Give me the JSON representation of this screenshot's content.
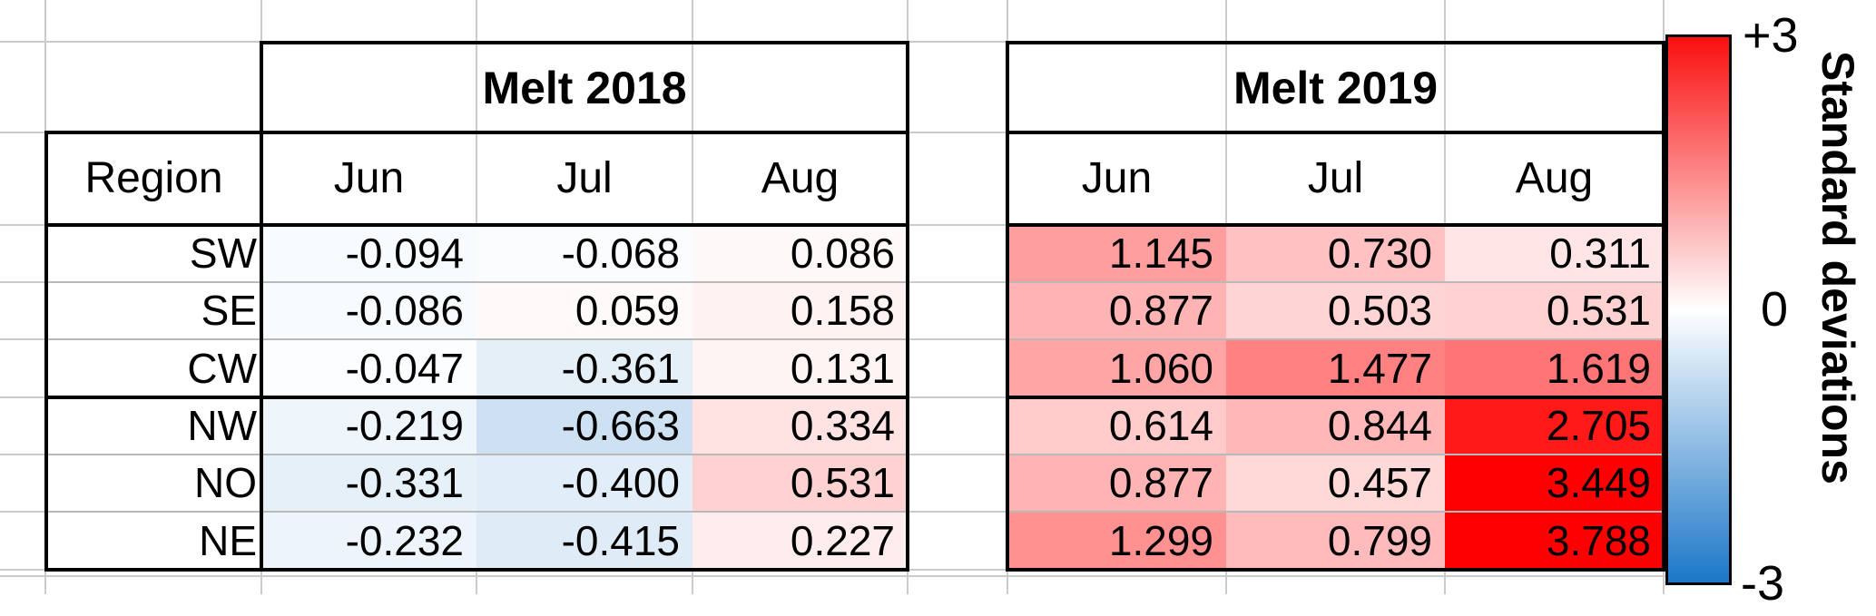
{
  "figure": {
    "region_header": "Region",
    "colorbar": {
      "tick_top": "+3",
      "tick_mid": "0",
      "tick_bottom": "-3",
      "label": "Standard deviations",
      "top_color": "#fa0f0f",
      "mid_color": "#ffffff",
      "bottom_color": "#1b77c8"
    }
  },
  "chart_data": {
    "type": "heatmap",
    "units": "standard deviations",
    "colormap": {
      "domain": [
        -3,
        3
      ],
      "negative_end_color": "#1b77c8",
      "zero_color": "#ffffff",
      "positive_end_color": "#ff0000"
    },
    "regions": [
      "SW",
      "SE",
      "CW",
      "NW",
      "NO",
      "NE"
    ],
    "months": [
      "Jun",
      "Jul",
      "Aug"
    ],
    "tables": [
      {
        "title": "Melt 2018",
        "rows": [
          [
            -0.094,
            -0.068,
            0.086
          ],
          [
            -0.086,
            0.059,
            0.158
          ],
          [
            -0.047,
            -0.361,
            0.131
          ],
          [
            -0.219,
            -0.663,
            0.334
          ],
          [
            -0.331,
            -0.4,
            0.531
          ],
          [
            -0.232,
            -0.415,
            0.227
          ]
        ]
      },
      {
        "title": "Melt 2019",
        "rows": [
          [
            1.145,
            0.73,
            0.311
          ],
          [
            0.877,
            0.503,
            0.531
          ],
          [
            1.06,
            1.477,
            1.619
          ],
          [
            0.614,
            0.844,
            2.705
          ],
          [
            0.877,
            0.457,
            3.449
          ],
          [
            1.299,
            0.799,
            3.788
          ]
        ]
      }
    ]
  }
}
